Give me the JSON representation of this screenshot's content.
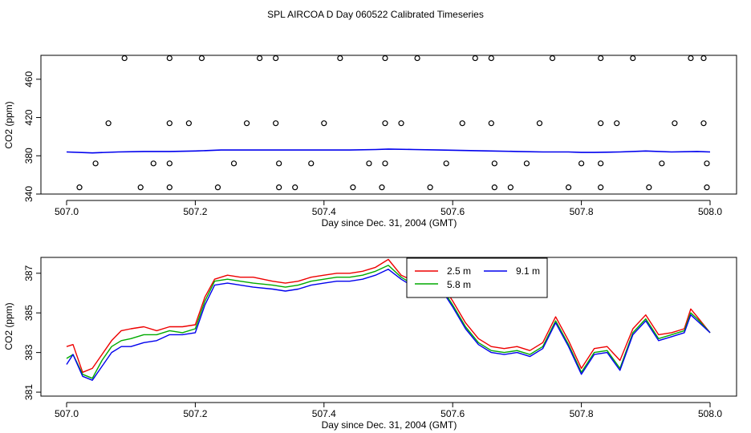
{
  "figure": {
    "title": "SPL AIRCOA D  Day 060522  Calibrated Timeseries"
  },
  "chart_data": [
    {
      "type": "scatter+line",
      "xlabel": "Day since Dec. 31, 2004 (GMT)",
      "ylabel": "CO2 (ppm)",
      "xlim": [
        507.0,
        508.0
      ],
      "ylim": [
        340,
        485
      ],
      "x_ticks": [
        "507.0",
        "507.2",
        "507.4",
        "507.6",
        "507.8",
        "508.0"
      ],
      "y_ticks": [
        "340",
        "380",
        "420",
        "460"
      ],
      "line_color": "#0000ee",
      "line": {
        "x": [
          507.0,
          507.04,
          507.08,
          507.12,
          507.16,
          507.2,
          507.24,
          507.28,
          507.32,
          507.36,
          507.4,
          507.44,
          507.48,
          507.5,
          507.54,
          507.58,
          507.62,
          507.66,
          507.7,
          507.74,
          507.78,
          507.8,
          507.82,
          507.86,
          507.9,
          507.94,
          507.98,
          508.0
        ],
        "y": [
          384,
          383,
          384,
          384.5,
          384.5,
          385,
          386,
          386,
          386,
          386,
          386,
          386,
          386.5,
          387,
          386.5,
          386,
          385.5,
          385,
          384.5,
          384,
          384,
          383.5,
          383.5,
          384,
          385,
          384,
          384.5,
          384
        ]
      },
      "points_top": {
        "y": 482,
        "x": [
          507.09,
          507.16,
          507.21,
          507.3,
          507.325,
          507.425,
          507.495,
          507.545,
          507.635,
          507.66,
          507.755,
          507.83,
          507.88,
          507.97,
          507.99
        ]
      },
      "points_upper": {
        "y": 414,
        "x": [
          507.065,
          507.16,
          507.19,
          507.28,
          507.325,
          507.4,
          507.495,
          507.52,
          507.615,
          507.66,
          507.735,
          507.83,
          507.855,
          507.945,
          507.99
        ]
      },
      "points_mid": {
        "y": 372,
        "x": [
          507.045,
          507.135,
          507.16,
          507.26,
          507.33,
          507.38,
          507.47,
          507.495,
          507.59,
          507.665,
          507.715,
          507.8,
          507.83,
          507.925,
          507.995
        ]
      },
      "points_low": {
        "y": 347,
        "x": [
          507.02,
          507.115,
          507.16,
          507.235,
          507.33,
          507.355,
          507.445,
          507.49,
          507.565,
          507.665,
          507.69,
          507.78,
          507.83,
          507.905,
          507.995
        ]
      }
    },
    {
      "type": "line",
      "xlabel": "Day since Dec. 31, 2004 (GMT)",
      "ylabel": "CO2 (ppm)",
      "xlim": [
        507.0,
        508.0
      ],
      "ylim": [
        380.8,
        387.8
      ],
      "x_ticks": [
        "507.0",
        "507.2",
        "507.4",
        "507.6",
        "507.8",
        "508.0"
      ],
      "y_ticks": [
        "381",
        "383",
        "385",
        "387"
      ],
      "legend": [
        "2.5 m",
        "5.8 m",
        "9.1 m"
      ],
      "x": [
        507.0,
        507.01,
        507.025,
        507.04,
        507.055,
        507.07,
        507.085,
        507.1,
        507.12,
        507.14,
        507.16,
        507.18,
        507.2,
        507.215,
        507.23,
        507.25,
        507.27,
        507.29,
        507.32,
        507.34,
        507.36,
        507.38,
        507.4,
        507.42,
        507.44,
        507.46,
        507.48,
        507.5,
        507.52,
        507.54,
        507.56,
        507.58,
        507.6,
        507.62,
        507.64,
        507.66,
        507.68,
        507.7,
        507.72,
        507.74,
        507.76,
        507.78,
        507.8,
        507.82,
        507.84,
        507.86,
        507.88,
        507.9,
        507.92,
        507.94,
        507.96,
        507.97,
        507.98,
        508.0
      ],
      "series": [
        {
          "name": "2.5 m",
          "color": "#ee0000",
          "values": [
            383.3,
            383.4,
            382.0,
            382.2,
            382.9,
            383.6,
            384.1,
            384.2,
            384.3,
            384.1,
            384.3,
            384.3,
            384.4,
            385.8,
            386.7,
            386.9,
            386.8,
            386.8,
            386.6,
            386.5,
            386.6,
            386.8,
            386.9,
            387.0,
            387.0,
            387.1,
            387.3,
            387.7,
            386.9,
            386.6,
            386.7,
            386.6,
            385.6,
            384.5,
            383.7,
            383.3,
            383.2,
            383.3,
            383.1,
            383.5,
            384.8,
            383.6,
            382.2,
            383.2,
            383.3,
            382.6,
            384.2,
            384.9,
            383.9,
            384.0,
            384.2,
            385.2,
            384.8,
            384.0
          ]
        },
        {
          "name": "5.8 m",
          "color": "#00aa00",
          "values": [
            382.7,
            382.9,
            381.9,
            381.7,
            382.6,
            383.3,
            383.6,
            383.7,
            383.9,
            383.9,
            384.1,
            384.0,
            384.2,
            385.6,
            386.6,
            386.7,
            386.6,
            386.5,
            386.4,
            386.3,
            386.4,
            386.6,
            386.7,
            386.8,
            386.8,
            386.9,
            387.1,
            387.4,
            386.8,
            386.4,
            386.5,
            386.4,
            385.4,
            384.3,
            383.5,
            383.1,
            383.0,
            383.1,
            382.9,
            383.3,
            384.6,
            383.4,
            382.0,
            383.0,
            383.1,
            382.2,
            384.0,
            384.7,
            383.7,
            383.9,
            384.1,
            385.0,
            384.7,
            384.0
          ]
        },
        {
          "name": "9.1 m",
          "color": "#0000ee",
          "values": [
            382.4,
            382.9,
            381.8,
            381.6,
            382.3,
            383.0,
            383.3,
            383.3,
            383.5,
            383.6,
            383.9,
            383.9,
            384.0,
            385.4,
            386.4,
            386.5,
            386.4,
            386.3,
            386.2,
            386.1,
            386.2,
            386.4,
            386.5,
            386.6,
            386.6,
            386.7,
            386.9,
            387.2,
            386.7,
            386.3,
            386.4,
            386.3,
            385.3,
            384.2,
            383.4,
            383.0,
            382.9,
            383.0,
            382.8,
            383.2,
            384.5,
            383.3,
            381.9,
            382.9,
            383.0,
            382.1,
            383.9,
            384.6,
            383.6,
            383.8,
            384.0,
            384.9,
            384.6,
            384.0
          ]
        }
      ]
    }
  ]
}
